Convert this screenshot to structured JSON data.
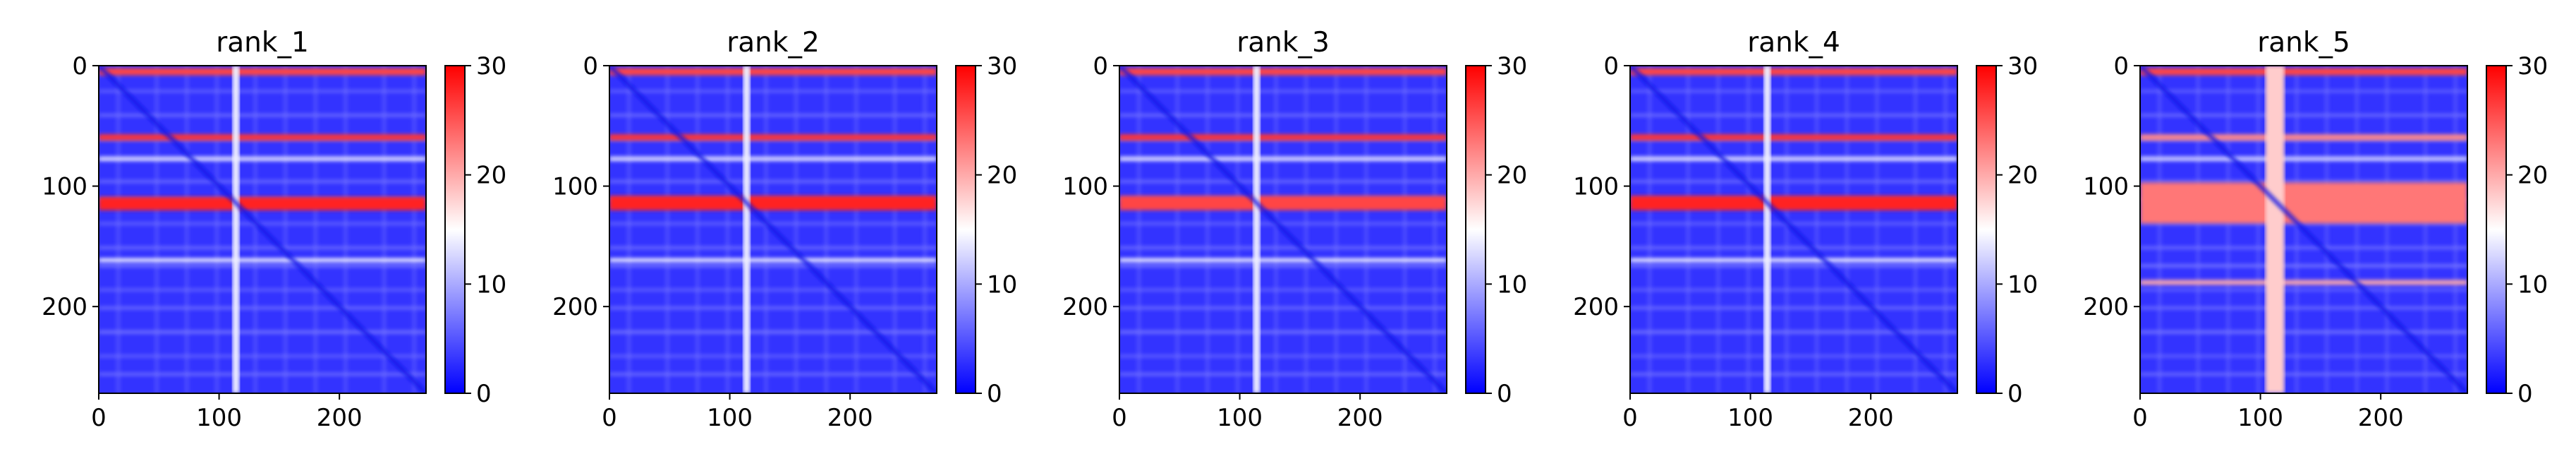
{
  "chart_data": [
    {
      "type": "heatmap",
      "title": "rank_1",
      "xlim": [
        0,
        272
      ],
      "ylim": [
        272,
        0
      ],
      "xticks": [
        0,
        100,
        200
      ],
      "yticks": [
        0,
        100,
        200
      ],
      "colorbar": {
        "range": [
          0,
          30
        ],
        "ticks": [
          0,
          10,
          20,
          30
        ]
      },
      "colormap": [
        "#0000ff",
        "#ffffff",
        "#ff0000"
      ],
      "stripe_pos": 114,
      "stripe_width": 6,
      "bands": [
        {
          "y": 2,
          "h": 6,
          "v": 26
        },
        {
          "y": 57,
          "h": 5,
          "v": 27
        },
        {
          "y": 76,
          "h": 3,
          "v": 14
        },
        {
          "y": 109,
          "h": 11,
          "v": 28
        },
        {
          "y": 160,
          "h": 3,
          "v": 15
        }
      ]
    },
    {
      "type": "heatmap",
      "title": "rank_2",
      "xlim": [
        0,
        272
      ],
      "ylim": [
        272,
        0
      ],
      "xticks": [
        0,
        100,
        200
      ],
      "yticks": [
        0,
        100,
        200
      ],
      "colorbar": {
        "range": [
          0,
          30
        ],
        "ticks": [
          0,
          10,
          20,
          30
        ]
      },
      "colormap": [
        "#0000ff",
        "#ffffff",
        "#ff0000"
      ],
      "stripe_pos": 114,
      "stripe_width": 6,
      "bands": [
        {
          "y": 2,
          "h": 6,
          "v": 26
        },
        {
          "y": 57,
          "h": 5,
          "v": 27
        },
        {
          "y": 76,
          "h": 3,
          "v": 14
        },
        {
          "y": 108,
          "h": 12,
          "v": 28
        },
        {
          "y": 160,
          "h": 3,
          "v": 15
        }
      ]
    },
    {
      "type": "heatmap",
      "title": "rank_3",
      "xlim": [
        0,
        272
      ],
      "ylim": [
        272,
        0
      ],
      "xticks": [
        0,
        100,
        200
      ],
      "yticks": [
        0,
        100,
        200
      ],
      "colorbar": {
        "range": [
          0,
          30
        ],
        "ticks": [
          0,
          10,
          20,
          30
        ]
      },
      "colormap": [
        "#0000ff",
        "#ffffff",
        "#ff0000"
      ],
      "stripe_pos": 114,
      "stripe_width": 6,
      "bands": [
        {
          "y": 2,
          "h": 6,
          "v": 26
        },
        {
          "y": 57,
          "h": 5,
          "v": 27
        },
        {
          "y": 76,
          "h": 3,
          "v": 14
        },
        {
          "y": 108,
          "h": 12,
          "v": 26
        },
        {
          "y": 160,
          "h": 3,
          "v": 15
        }
      ]
    },
    {
      "type": "heatmap",
      "title": "rank_4",
      "xlim": [
        0,
        272
      ],
      "ylim": [
        272,
        0
      ],
      "xticks": [
        0,
        100,
        200
      ],
      "yticks": [
        0,
        100,
        200
      ],
      "colorbar": {
        "range": [
          0,
          30
        ],
        "ticks": [
          0,
          10,
          20,
          30
        ]
      },
      "colormap": [
        "#0000ff",
        "#ffffff",
        "#ff0000"
      ],
      "stripe_pos": 114,
      "stripe_width": 6,
      "bands": [
        {
          "y": 2,
          "h": 6,
          "v": 26
        },
        {
          "y": 57,
          "h": 5,
          "v": 27
        },
        {
          "y": 76,
          "h": 3,
          "v": 14
        },
        {
          "y": 108,
          "h": 12,
          "v": 28
        },
        {
          "y": 160,
          "h": 3,
          "v": 15
        }
      ]
    },
    {
      "type": "heatmap",
      "title": "rank_5",
      "xlim": [
        0,
        272
      ],
      "ylim": [
        272,
        0
      ],
      "xticks": [
        0,
        100,
        200
      ],
      "yticks": [
        0,
        100,
        200
      ],
      "colorbar": {
        "range": [
          0,
          30
        ],
        "ticks": [
          0,
          10,
          20,
          30
        ]
      },
      "colormap": [
        "#0000ff",
        "#ffffff",
        "#ff0000"
      ],
      "stripe_pos": 112,
      "stripe_width": 16,
      "bands": [
        {
          "y": 2,
          "h": 6,
          "v": 26
        },
        {
          "y": 57,
          "h": 5,
          "v": 22
        },
        {
          "y": 76,
          "h": 3,
          "v": 13
        },
        {
          "y": 97,
          "h": 34,
          "v": 23
        },
        {
          "y": 178,
          "h": 4,
          "v": 20
        }
      ]
    }
  ]
}
